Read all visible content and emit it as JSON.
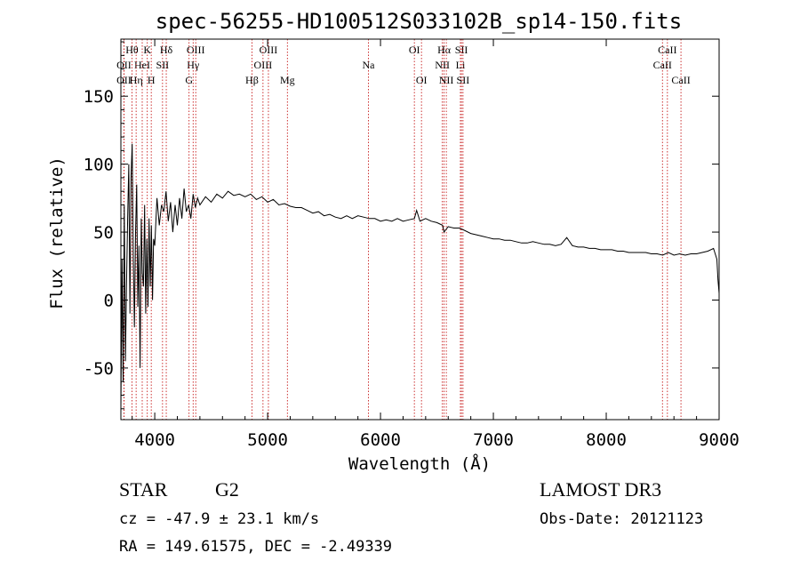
{
  "chart_data": {
    "type": "line",
    "title": "spec-56255-HD100512S033102B_sp14-150.fits",
    "xlabel": "Wavelength (Å)",
    "ylabel": "Flux (relative)",
    "xlim": [
      3700,
      9000
    ],
    "ylim": [
      -88,
      192
    ],
    "xticks": [
      4000,
      5000,
      6000,
      7000,
      8000,
      9000
    ],
    "yticks": [
      -50,
      0,
      50,
      100,
      150
    ],
    "series": [
      {
        "name": "flux",
        "x": [
          3700,
          3710,
          3720,
          3730,
          3740,
          3750,
          3760,
          3770,
          3780,
          3790,
          3800,
          3810,
          3820,
          3830,
          3840,
          3850,
          3860,
          3870,
          3880,
          3890,
          3900,
          3910,
          3920,
          3930,
          3940,
          3950,
          3960,
          3970,
          3980,
          3990,
          4000,
          4020,
          4040,
          4060,
          4080,
          4100,
          4120,
          4140,
          4160,
          4180,
          4200,
          4220,
          4240,
          4260,
          4280,
          4300,
          4320,
          4340,
          4360,
          4380,
          4400,
          4450,
          4500,
          4550,
          4600,
          4650,
          4700,
          4750,
          4800,
          4850,
          4900,
          4950,
          5000,
          5050,
          5100,
          5150,
          5200,
          5250,
          5300,
          5350,
          5400,
          5450,
          5500,
          5550,
          5600,
          5650,
          5700,
          5750,
          5800,
          5850,
          5900,
          5950,
          6000,
          6050,
          6100,
          6150,
          6200,
          6250,
          6300,
          6320,
          6350,
          6400,
          6450,
          6500,
          6550,
          6563,
          6600,
          6650,
          6700,
          6750,
          6800,
          6850,
          6900,
          6950,
          7000,
          7050,
          7100,
          7150,
          7200,
          7250,
          7300,
          7350,
          7400,
          7450,
          7500,
          7550,
          7600,
          7650,
          7700,
          7750,
          7800,
          7850,
          7900,
          7950,
          8000,
          8050,
          8100,
          8150,
          8200,
          8250,
          8300,
          8350,
          8400,
          8450,
          8500,
          8550,
          8600,
          8650,
          8700,
          8750,
          8800,
          8850,
          8900,
          8950,
          8980,
          8990,
          9000
        ],
        "values": [
          -80,
          30,
          -60,
          70,
          -45,
          10,
          60,
          100,
          -10,
          90,
          115,
          30,
          -20,
          50,
          85,
          -5,
          40,
          -50,
          60,
          20,
          10,
          70,
          -10,
          45,
          -5,
          60,
          10,
          55,
          0,
          45,
          40,
          75,
          55,
          70,
          65,
          80,
          58,
          72,
          50,
          70,
          55,
          75,
          60,
          82,
          65,
          70,
          60,
          78,
          68,
          75,
          70,
          76,
          72,
          78,
          75,
          80,
          77,
          78,
          76,
          78,
          74,
          76,
          72,
          74,
          70,
          71,
          69,
          68,
          68,
          66,
          64,
          65,
          62,
          63,
          61,
          60,
          62,
          60,
          62,
          61,
          60,
          60,
          58,
          59,
          58,
          60,
          58,
          59,
          60,
          66,
          58,
          60,
          58,
          57,
          55,
          50,
          54,
          53,
          53,
          51,
          49,
          48,
          47,
          46,
          45,
          45,
          44,
          44,
          43,
          42,
          42,
          43,
          42,
          41,
          41,
          40,
          41,
          46,
          40,
          39,
          39,
          38,
          38,
          37,
          37,
          37,
          36,
          36,
          35,
          35,
          35,
          35,
          34,
          34,
          33,
          35,
          33,
          34,
          33,
          34,
          34,
          35,
          36,
          38,
          30,
          15,
          5
        ]
      }
    ],
    "spectral_lines": [
      {
        "label": "Hθ",
        "wavelength": 3798,
        "row": 1
      },
      {
        "label": "OII",
        "wavelength": 3727,
        "row": 2
      },
      {
        "label": "OII",
        "wavelength": 3727,
        "row": 3
      },
      {
        "label": "HeI",
        "wavelength": 3889,
        "row": 2
      },
      {
        "label": "Hη",
        "wavelength": 3835,
        "row": 3
      },
      {
        "label": "K",
        "wavelength": 3934,
        "row": 1
      },
      {
        "label": "SII",
        "wavelength": 4069,
        "row": 2
      },
      {
        "label": "H",
        "wavelength": 3969,
        "row": 3
      },
      {
        "label": "Hδ",
        "wavelength": 4102,
        "row": 1
      },
      {
        "label": "OIII",
        "wavelength": 4363,
        "row": 1
      },
      {
        "label": "Hγ",
        "wavelength": 4340,
        "row": 2
      },
      {
        "label": "G",
        "wavelength": 4304,
        "row": 3
      },
      {
        "label": "Hβ",
        "wavelength": 4861,
        "row": 3
      },
      {
        "label": "OIII",
        "wavelength": 5007,
        "row": 1
      },
      {
        "label": "OIII",
        "wavelength": 4959,
        "row": 2
      },
      {
        "label": "Mg",
        "wavelength": 5175,
        "row": 3
      },
      {
        "label": "Na",
        "wavelength": 5893,
        "row": 2
      },
      {
        "label": "OI",
        "wavelength": 6300,
        "row": 1
      },
      {
        "label": "OI",
        "wavelength": 6363,
        "row": 3
      },
      {
        "label": "Hα",
        "wavelength": 6563,
        "row": 1
      },
      {
        "label": "NII",
        "wavelength": 6548,
        "row": 2
      },
      {
        "label": "NII",
        "wavelength": 6583,
        "row": 3
      },
      {
        "label": "SII",
        "wavelength": 6717,
        "row": 1
      },
      {
        "label": "Li",
        "wavelength": 6708,
        "row": 2
      },
      {
        "label": "SII",
        "wavelength": 6731,
        "row": 3
      },
      {
        "label": "CaII",
        "wavelength": 8542,
        "row": 1
      },
      {
        "label": "CaII",
        "wavelength": 8498,
        "row": 2
      },
      {
        "label": "CaII",
        "wavelength": 8662,
        "row": 3
      }
    ]
  },
  "info": {
    "class_label": "STAR",
    "subclass": "G2",
    "survey": "LAMOST DR3",
    "redshift_line": "cz = -47.9 ± 23.1 km/s",
    "obs_date_line": "Obs-Date: 20121123",
    "coords_line": "RA = 149.61575, DEC =  -2.49339"
  },
  "colors": {
    "spectrum": "#000000",
    "line_marker": "#c00000",
    "axes": "#000000"
  }
}
